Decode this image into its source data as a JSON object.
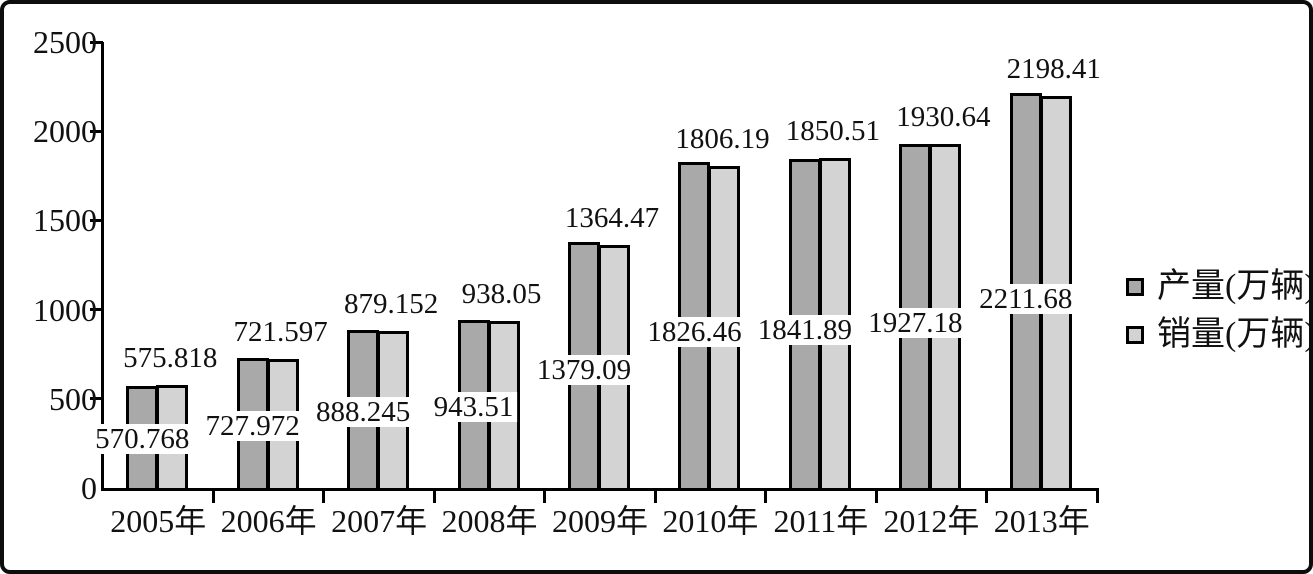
{
  "chart_data": {
    "type": "bar",
    "title": "",
    "xlabel": "",
    "ylabel": "",
    "categories": [
      "2005年",
      "2006年",
      "2007年",
      "2008年",
      "2009年",
      "2010年",
      "2011年",
      "2012年",
      "2013年"
    ],
    "series": [
      {
        "name": "产量(万辆)",
        "values": [
          570.768,
          727.972,
          888.245,
          943.51,
          1379.09,
          1826.46,
          1841.89,
          1927.18,
          2211.68
        ],
        "color": "#a9a9a9",
        "label_placement": "inside-lower"
      },
      {
        "name": "销量(万辆)",
        "values": [
          575.818,
          721.597,
          879.152,
          938.05,
          1364.47,
          1806.19,
          1850.51,
          1930.64,
          2198.41
        ],
        "color": "#d3d3d3",
        "label_placement": "above"
      }
    ],
    "y_ticks": [
      0,
      500,
      1000,
      1500,
      2000,
      2500
    ],
    "ylim": [
      0,
      2500
    ],
    "grid": false,
    "legend_position": "right",
    "bar_border_color": "#000000",
    "axis_color": "#000000"
  }
}
